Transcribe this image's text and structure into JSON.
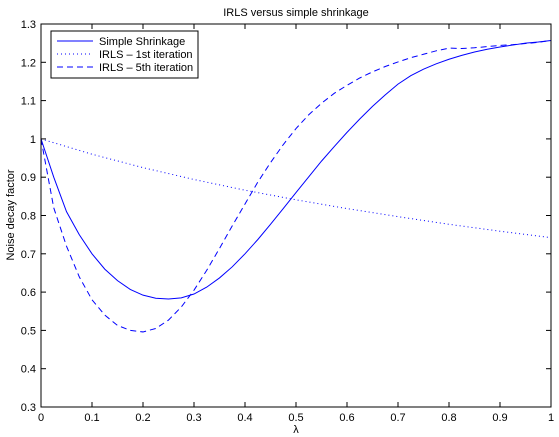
{
  "chart_data": {
    "type": "line",
    "title": "IRLS versus simple shrinkage",
    "xlabel": "λ",
    "ylabel": "Noise decay factor",
    "xlim": [
      0,
      1
    ],
    "ylim": [
      0.3,
      1.3
    ],
    "xticks": [
      "0",
      "0.1",
      "0.2",
      "0.3",
      "0.4",
      "0.5",
      "0.6",
      "0.7",
      "0.8",
      "0.9",
      "1"
    ],
    "yticks": [
      "0.3",
      "0.4",
      "0.5",
      "0.6",
      "0.7",
      "0.8",
      "0.9",
      "1",
      "1.1",
      "1.2",
      "1.3"
    ],
    "grid": false,
    "legend_position": "top-left",
    "series": [
      {
        "name": "Simple Shrinkage",
        "color": "#0000ff",
        "style": "solid",
        "x": [
          0,
          0.025,
          0.05,
          0.075,
          0.1,
          0.125,
          0.15,
          0.175,
          0.2,
          0.225,
          0.25,
          0.275,
          0.3,
          0.325,
          0.35,
          0.375,
          0.4,
          0.425,
          0.45,
          0.475,
          0.5,
          0.525,
          0.55,
          0.575,
          0.6,
          0.625,
          0.65,
          0.675,
          0.7,
          0.725,
          0.75,
          0.775,
          0.8,
          0.825,
          0.85,
          0.875,
          0.9,
          0.925,
          0.95,
          0.975,
          1.0
        ],
        "values": [
          1.0,
          0.9,
          0.81,
          0.75,
          0.7,
          0.66,
          0.63,
          0.607,
          0.592,
          0.584,
          0.582,
          0.585,
          0.595,
          0.613,
          0.637,
          0.666,
          0.7,
          0.737,
          0.777,
          0.818,
          0.86,
          0.901,
          0.942,
          0.98,
          1.017,
          1.052,
          1.085,
          1.115,
          1.143,
          1.165,
          1.182,
          1.196,
          1.208,
          1.218,
          1.227,
          1.234,
          1.24,
          1.245,
          1.25,
          1.253,
          1.257
        ]
      },
      {
        "name": "IRLS – 1st iteration",
        "color": "#0000ff",
        "style": "dotted",
        "x": [
          0,
          0.1,
          0.2,
          0.3,
          0.4,
          0.5,
          0.6,
          0.7,
          0.8,
          0.9,
          1.0
        ],
        "values": [
          1.0,
          0.96,
          0.925,
          0.894,
          0.866,
          0.841,
          0.818,
          0.797,
          0.777,
          0.759,
          0.742
        ]
      },
      {
        "name": "IRLS – 5th iteration",
        "color": "#0000ff",
        "style": "dashed",
        "x": [
          0,
          0.025,
          0.05,
          0.075,
          0.1,
          0.125,
          0.15,
          0.175,
          0.2,
          0.225,
          0.25,
          0.275,
          0.3,
          0.325,
          0.35,
          0.375,
          0.4,
          0.425,
          0.45,
          0.475,
          0.5,
          0.525,
          0.55,
          0.575,
          0.6,
          0.625,
          0.65,
          0.675,
          0.7,
          0.725,
          0.75,
          0.775,
          0.8,
          0.825,
          0.85,
          0.875,
          0.9,
          0.925,
          0.95,
          0.975,
          1.0
        ],
        "values": [
          1.0,
          0.82,
          0.72,
          0.64,
          0.58,
          0.54,
          0.513,
          0.5,
          0.496,
          0.505,
          0.527,
          0.561,
          0.605,
          0.657,
          0.714,
          0.773,
          0.83,
          0.887,
          0.938,
          0.985,
          1.027,
          1.063,
          1.093,
          1.119,
          1.14,
          1.159,
          1.175,
          1.189,
          1.201,
          1.212,
          1.221,
          1.23,
          1.237,
          1.236,
          1.238,
          1.241,
          1.244,
          1.246,
          1.249,
          1.252,
          1.257
        ]
      }
    ]
  }
}
